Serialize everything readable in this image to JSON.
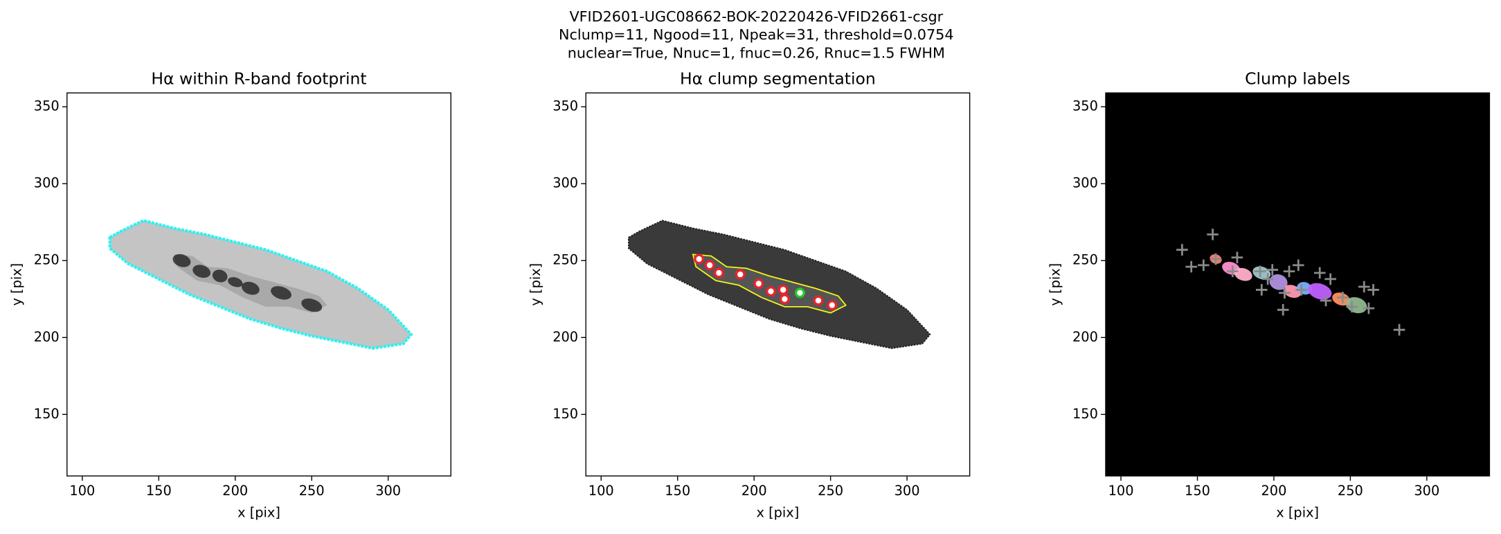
{
  "suptitle": [
    "VFID2601-UGC08662-BOK-20220426-VFID2661-csgr",
    "Nclump=11, Ngood=11, Npeak=31, threshold=0.0754",
    "nuclear=True, Nnuc=1, fnuc=0.26, Rnuc=1.5 FWHM"
  ],
  "chart_data": [
    {
      "type": "image",
      "title": "Hα within R-band footprint",
      "xlabel": "x [pix]",
      "ylabel": "y [pix]",
      "facecolor": "#ffffff",
      "xlim": [
        90,
        341
      ],
      "ylim": [
        110,
        359
      ],
      "xticks": [
        100,
        150,
        200,
        250,
        300
      ],
      "yticks": [
        150,
        200,
        250,
        300,
        350
      ],
      "series": []
    },
    {
      "type": "image",
      "title": "Hα clump segmentation",
      "xlabel": "x [pix]",
      "ylabel": "y [pix]",
      "facecolor": "#ffffff",
      "xlim": [
        90,
        341
      ],
      "ylim": [
        110,
        359
      ],
      "xticks": [
        100,
        150,
        200,
        250,
        300
      ],
      "yticks": [
        150,
        200,
        250,
        300,
        350
      ],
      "series": [
        {
          "color": "#e8242b",
          "marker": "o",
          "x": [
            164,
            171,
            177,
            191,
            203,
            211,
            219,
            220,
            242,
            251
          ],
          "values": [
            251,
            247,
            242,
            241,
            235,
            230,
            231,
            225,
            224,
            221
          ]
        },
        {
          "color": "#22cc22",
          "marker": "o",
          "x": [
            230
          ],
          "values": [
            229
          ]
        }
      ]
    },
    {
      "type": "image",
      "title": "Clump labels",
      "xlabel": "x [pix]",
      "ylabel": "y [pix]",
      "facecolor": "#000000",
      "xlim": [
        90,
        341
      ],
      "ylim": [
        110,
        359
      ],
      "xticks": [
        100,
        150,
        200,
        250,
        300
      ],
      "yticks": [
        150,
        200,
        250,
        300,
        350
      ],
      "series": [
        {
          "color": "#8a8a8a",
          "marker": "+",
          "x": [
            140,
            146,
            154,
            160,
            162,
            176,
            173,
            191,
            196,
            199,
            192,
            207,
            206,
            210,
            216,
            218,
            230,
            237,
            234,
            245,
            259,
            265,
            262,
            251,
            282
          ],
          "values": [
            257,
            246,
            247,
            267,
            251,
            252,
            243,
            243,
            238,
            244,
            231,
            229,
            218,
            243,
            247,
            231,
            242,
            238,
            224,
            226,
            233,
            231,
            219,
            220,
            205
          ]
        }
      ]
    }
  ]
}
